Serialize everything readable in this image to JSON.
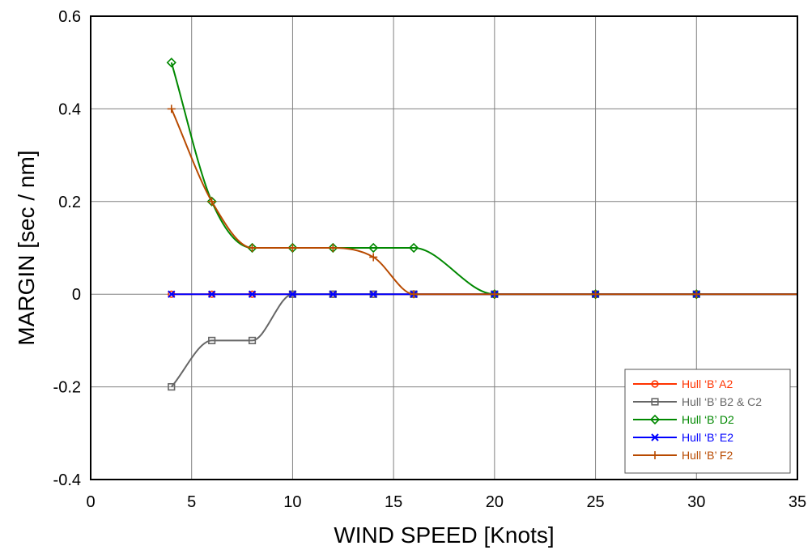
{
  "chart_data": {
    "type": "line",
    "xlabel": "WIND SPEED [Knots]",
    "ylabel": "MARGIN [sec / nm]",
    "xlim": [
      0,
      35
    ],
    "ylim": [
      -0.4,
      0.6
    ],
    "xticks": [
      0,
      5,
      10,
      15,
      20,
      25,
      30,
      35
    ],
    "xtick_labels": [
      "0",
      "5",
      "10",
      "15",
      "20",
      "25",
      "30",
      "35"
    ],
    "yticks": [
      -0.4,
      -0.2,
      0,
      0.2,
      0.4,
      0.6
    ],
    "ytick_labels": [
      "-0.4",
      "-0.2",
      "0",
      "0.2",
      "0.4",
      "0.6"
    ],
    "grid": true,
    "legend_position": "bottom-right",
    "series": [
      {
        "name": "Hull ‘B’ A2",
        "color": "#ff3300",
        "marker": "circle",
        "x": [
          4,
          6,
          8,
          10,
          12,
          14,
          16,
          20,
          25,
          30
        ],
        "y": [
          0,
          0,
          0,
          0,
          0,
          0,
          0,
          0,
          0,
          0
        ]
      },
      {
        "name": "Hull ‘B’ B2 & C2",
        "color": "#666666",
        "marker": "square",
        "x": [
          4,
          6,
          8,
          10,
          12,
          14,
          16,
          20,
          25,
          30
        ],
        "y": [
          -0.2,
          -0.1,
          -0.1,
          0,
          0,
          0,
          0,
          0,
          0,
          0
        ]
      },
      {
        "name": "Hull ‘B’ D2",
        "color": "#008800",
        "marker": "diamond",
        "x": [
          4,
          6,
          8,
          10,
          12,
          14,
          16,
          20,
          25,
          30
        ],
        "y": [
          0.5,
          0.2,
          0.1,
          0.1,
          0.1,
          0.1,
          0.1,
          0,
          0,
          0
        ]
      },
      {
        "name": "Hull ‘B’ E2",
        "color": "#0000ff",
        "marker": "x",
        "x": [
          4,
          6,
          8,
          10,
          12,
          14,
          16,
          20,
          25,
          30
        ],
        "y": [
          0,
          0,
          0,
          0,
          0,
          0,
          0,
          0,
          0,
          0
        ]
      },
      {
        "name": "Hull ‘B’ F2",
        "color": "#b84a00",
        "marker": "plus",
        "x": [
          4,
          6,
          8,
          10,
          12,
          14,
          16,
          20,
          25,
          30
        ],
        "y": [
          0.4,
          0.2,
          0.1,
          0.1,
          0.1,
          0.08,
          0,
          0,
          0,
          0
        ]
      }
    ]
  }
}
